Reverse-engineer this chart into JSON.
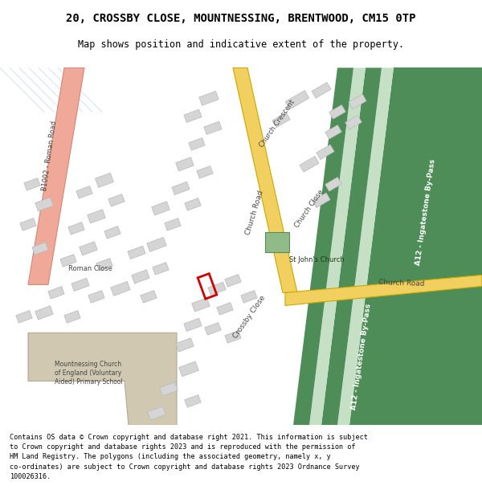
{
  "title": "20, CROSSBY CLOSE, MOUNTNESSING, BRENTWOOD, CM15 0TP",
  "subtitle": "Map shows position and indicative extent of the property.",
  "copyright_text": "Contains OS data © Crown copyright and database right 2021. This information is subject to Crown copyright and database rights 2023 and is reproduced with the permission of HM Land Registry. The polygons (including the associated geometry, namely x, y co-ordinates) are subject to Crown copyright and database rights 2023 Ordnance Survey 100026316.",
  "map_bg": "#f5f5f5",
  "road_yellow_fill": "#f2d060",
  "road_yellow_edge": "#c8a800",
  "road_pink_fill": "#f0a898",
  "road_pink_edge": "#d08878",
  "motorway_dark": "#4e8c58",
  "motorway_mid": "#7ab87a",
  "motorway_light": "#c5e0c5",
  "church_green": "#90bb88",
  "school_tan": "#d0c8b0",
  "building_gray": "#d5d5d5",
  "building_edge": "#b8b8b8",
  "plot_red": "#cc0000",
  "road_text": "#444444",
  "white": "#ffffff",
  "title_font": 10,
  "subtitle_font": 8.5,
  "copyright_font": 6.1
}
